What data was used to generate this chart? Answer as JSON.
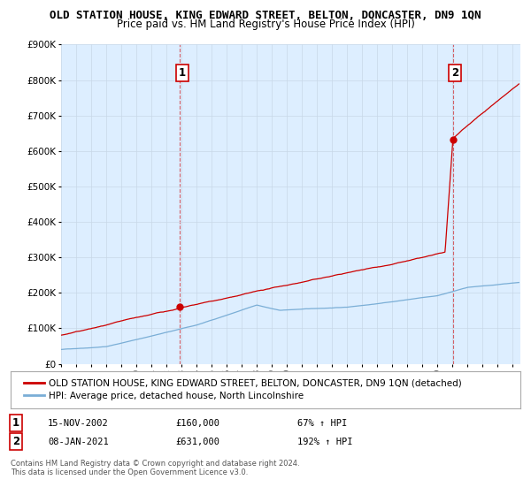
{
  "title": "OLD STATION HOUSE, KING EDWARD STREET, BELTON, DONCASTER, DN9 1QN",
  "subtitle": "Price paid vs. HM Land Registry's House Price Index (HPI)",
  "ylim": [
    0,
    900000
  ],
  "yticks": [
    0,
    100000,
    200000,
    300000,
    400000,
    500000,
    600000,
    700000,
    800000,
    900000
  ],
  "ytick_labels": [
    "£0",
    "£100K",
    "£200K",
    "£300K",
    "£400K",
    "£500K",
    "£600K",
    "£700K",
    "£800K",
    "£900K"
  ],
  "xlim_start": 1995.0,
  "xlim_end": 2025.5,
  "red_line_color": "#cc0000",
  "blue_line_color": "#7aaed6",
  "vline_color": "#cc0000",
  "plot_bg_color": "#ddeeff",
  "purchase1_x": 2002.877,
  "purchase1_y": 160000,
  "purchase1_label": "1",
  "purchase1_date": "15-NOV-2002",
  "purchase1_price": "£160,000",
  "purchase1_hpi": "67% ↑ HPI",
  "purchase2_x": 2021.02,
  "purchase2_y": 631000,
  "purchase2_label": "2",
  "purchase2_date": "08-JAN-2021",
  "purchase2_price": "£631,000",
  "purchase2_hpi": "192% ↑ HPI",
  "legend_line1": "OLD STATION HOUSE, KING EDWARD STREET, BELTON, DONCASTER, DN9 1QN (detached)",
  "legend_line2": "HPI: Average price, detached house, North Lincolnshire",
  "footer1": "Contains HM Land Registry data © Crown copyright and database right 2024.",
  "footer2": "This data is licensed under the Open Government Licence v3.0.",
  "background_color": "#ffffff",
  "grid_color": "#c8d8e8",
  "title_fontsize": 9.0,
  "subtitle_fontsize": 8.5,
  "tick_fontsize": 7.5,
  "legend_fontsize": 7.5,
  "annotation_fontsize": 8
}
